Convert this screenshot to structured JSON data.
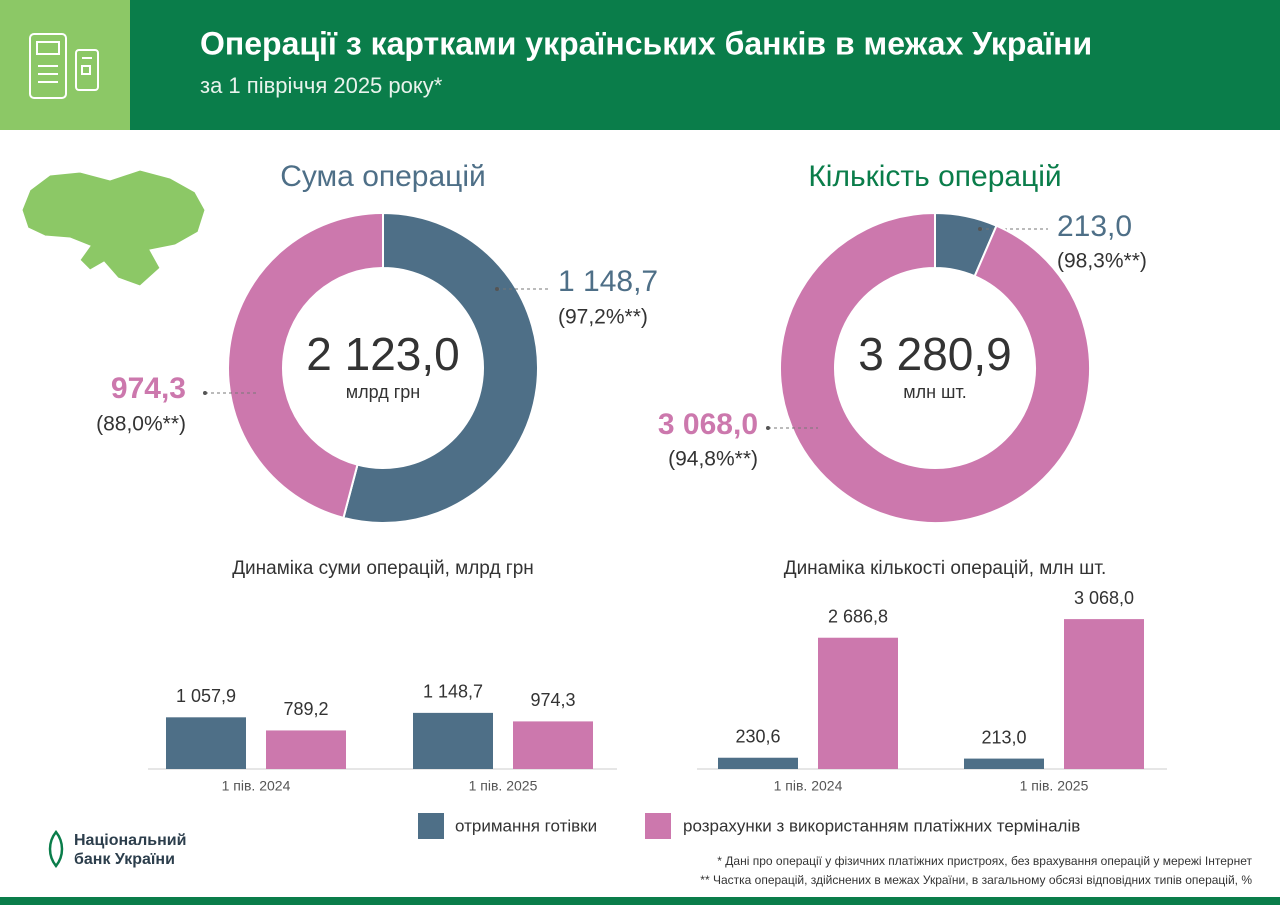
{
  "header": {
    "title": "Операції з картками українських банків в межах України",
    "subtitle": "за 1 півріччя 2025 року*"
  },
  "chart_data": [
    {
      "type": "donut",
      "title": "Сума операцій",
      "total": {
        "value": 2123.0,
        "label": "2 123,0"
      },
      "unit": "млрд грн",
      "values": [
        1148.7,
        974.3
      ],
      "value_labels": [
        "1 148,7",
        "974,3"
      ],
      "share_labels": [
        "(97,2%**)",
        "(88,0%**)"
      ],
      "colors": [
        "#4e6f87",
        "#cc78ad"
      ]
    },
    {
      "type": "donut",
      "title": "Кількість операцій",
      "total": {
        "value": 3280.9,
        "label": "3 280,9"
      },
      "unit": "млн шт.",
      "values": [
        213.0,
        3068.0
      ],
      "value_labels": [
        "213,0",
        "3 068,0"
      ],
      "share_labels": [
        "(98,3%**)",
        "(94,8%**)"
      ],
      "colors": [
        "#4e6f87",
        "#cc78ad"
      ]
    },
    {
      "type": "bar",
      "title": "Динаміка суми операцій, млрд грн",
      "categories": [
        "1 пів. 2024",
        "1 пів. 2025"
      ],
      "ylim": [
        0,
        3500
      ],
      "series": [
        {
          "name": "отримання готівки",
          "color": "#4e6f87",
          "values": [
            1057.9,
            1148.7
          ],
          "value_labels": [
            "1 057,9",
            "1 148,7"
          ]
        },
        {
          "name": "розрахунки з використанням платіжних терміналів",
          "color": "#cc78ad",
          "values": [
            789.2,
            974.3
          ],
          "value_labels": [
            "789,2",
            "974,3"
          ]
        }
      ]
    },
    {
      "type": "bar",
      "title": "Динаміка кількості операцій, млн шт.",
      "categories": [
        "1 пів. 2024",
        "1 пів. 2025"
      ],
      "ylim": [
        0,
        3500
      ],
      "series": [
        {
          "color": "#4e6f87",
          "values": [
            230.6,
            213.0
          ],
          "value_labels": [
            "230,6",
            "213,0"
          ]
        },
        {
          "color": "#cc78ad",
          "values": [
            2686.8,
            3068.0
          ],
          "value_labels": [
            "2 686,8",
            "3 068,0"
          ]
        }
      ]
    }
  ],
  "logo": {
    "line1": "Національний",
    "line2": "банк України"
  },
  "footnotes": [
    "* Дані про операції у фізичних платіжних пристроях, без врахування операцій у мережі Інтернет",
    "** Частка операцій, здійснених в межах України, в загальному обсязі відповідних типів операцій, %"
  ]
}
